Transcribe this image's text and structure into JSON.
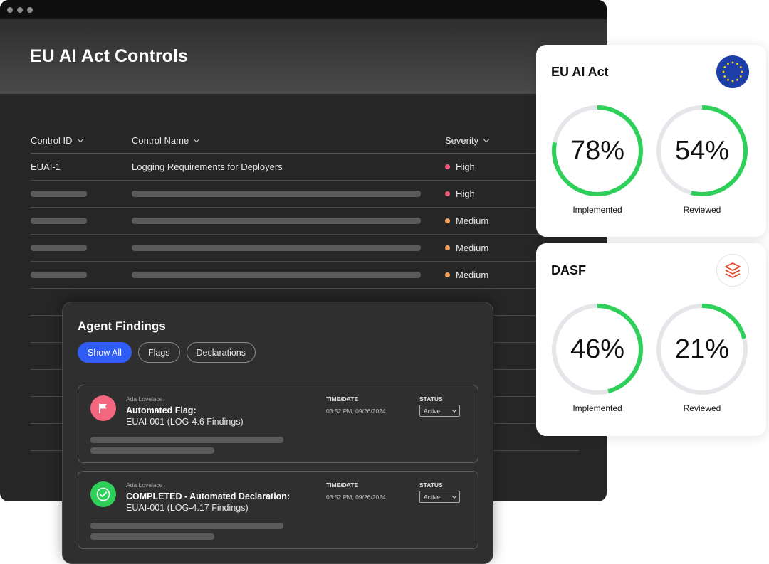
{
  "window": {
    "title": "EU AI Act Controls"
  },
  "table": {
    "headers": {
      "id": "Control ID",
      "name": "Control Name",
      "severity": "Severity"
    },
    "rows": [
      {
        "id": "EUAI-1",
        "name": "Logging Requirements for Deployers",
        "severity": "High",
        "severity_color": "#ee5a7a"
      },
      {
        "id": "",
        "name": "",
        "severity": "High",
        "severity_color": "#ee5a7a"
      },
      {
        "id": "",
        "name": "",
        "severity": "Medium",
        "severity_color": "#f2a05a"
      },
      {
        "id": "",
        "name": "",
        "severity": "Medium",
        "severity_color": "#f2a05a"
      },
      {
        "id": "",
        "name": "",
        "severity": "Medium",
        "severity_color": "#f2a05a"
      }
    ]
  },
  "findings": {
    "title": "Agent Findings",
    "filters": [
      "Show All",
      "Flags",
      "Declarations"
    ],
    "active_filter": "Show All",
    "cards": [
      {
        "author": "Ada Lovelace",
        "title": "Automated Flag:",
        "subtitle": "EUAI-001 (LOG-4.6 Findings)",
        "time_label": "TIME/DATE",
        "time_value": "03:52 PM,  09/26/2024",
        "status_label": "STATUS",
        "status_value": "Active",
        "icon": "flag-icon",
        "icon_color": "#f4667e"
      },
      {
        "author": "Ada Lovelace",
        "title": "COMPLETED - Automated Declaration:",
        "subtitle": "EUAI-001 (LOG-4.17 Findings)",
        "time_label": "TIME/DATE",
        "time_value": "03:52 PM,  09/26/2024",
        "status_label": "STATUS",
        "status_value": "Active",
        "icon": "check-circle-icon",
        "icon_color": "#2fd05a"
      }
    ]
  },
  "scores": [
    {
      "title": "EU AI Act",
      "badge_icon": "eu-flag-icon",
      "metrics": [
        {
          "label": "Implemented",
          "value": 78,
          "display": "78%"
        },
        {
          "label": "Reviewed",
          "value": 54,
          "display": "54%"
        }
      ]
    },
    {
      "title": "DASF",
      "badge_icon": "databricks-logo-icon",
      "metrics": [
        {
          "label": "Implemented",
          "value": 46,
          "display": "46%"
        },
        {
          "label": "Reviewed",
          "value": 21,
          "display": "21%"
        }
      ]
    }
  ],
  "colors": {
    "accent": "#2f5cf5",
    "progress": "#2fd05a",
    "track": "#e4e6ea"
  }
}
